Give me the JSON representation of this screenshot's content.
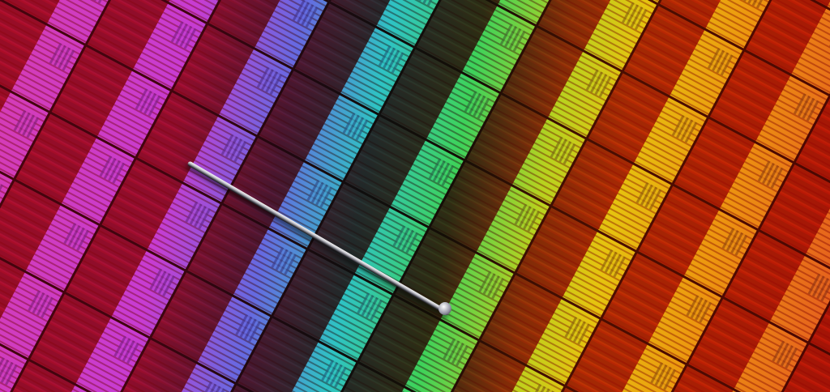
{
  "image": {
    "subject": "silicon-wafer-with-pin",
    "colors": {
      "magenta": "#e040c0",
      "violet": "#d040e0",
      "blue": "#6a70f0",
      "cyan": "#30d0d0",
      "green": "#40e060",
      "yellow": "#f0d010",
      "orange": "#f8a010",
      "red_core": "#b01818"
    }
  }
}
